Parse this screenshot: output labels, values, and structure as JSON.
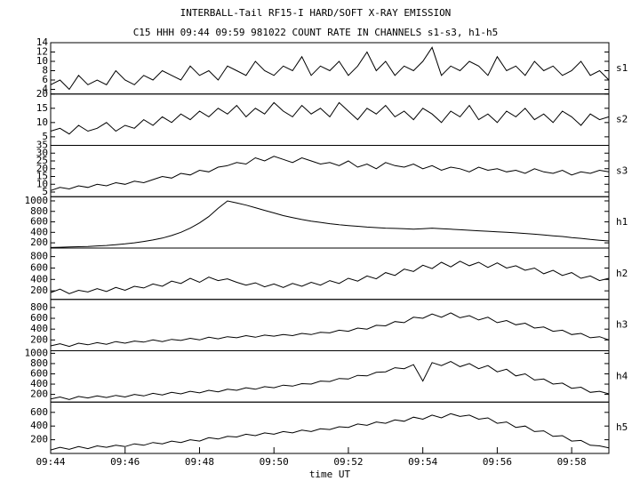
{
  "chart_data": {
    "type": "line",
    "title": "INTERBALL-Tail RF15-I HARD/SOFT X-RAY EMISSION",
    "subtitle": "C15 HHH 09:44 09:59 981022  COUNT RATE IN CHANNELS s1-s3, h1-h5",
    "xlabel": "time UT",
    "xlim": [
      584,
      599
    ],
    "xticks": [
      {
        "value": 584,
        "label": "09:44"
      },
      {
        "value": 586,
        "label": "09:46"
      },
      {
        "value": 588,
        "label": "09:48"
      },
      {
        "value": 590,
        "label": "09:50"
      },
      {
        "value": 592,
        "label": "09:52"
      },
      {
        "value": 594,
        "label": "09:54"
      },
      {
        "value": 596,
        "label": "09:56"
      },
      {
        "value": 598,
        "label": "09:58"
      }
    ],
    "x": [
      584,
      584.25,
      584.5,
      584.75,
      585,
      585.25,
      585.5,
      585.75,
      586,
      586.25,
      586.5,
      586.75,
      587,
      587.25,
      587.5,
      587.75,
      588,
      588.25,
      588.5,
      588.75,
      589,
      589.25,
      589.5,
      589.75,
      590,
      590.25,
      590.5,
      590.75,
      591,
      591.25,
      591.5,
      591.75,
      592,
      592.25,
      592.5,
      592.75,
      593,
      593.25,
      593.5,
      593.75,
      594,
      594.25,
      594.5,
      594.75,
      595,
      595.25,
      595.5,
      595.75,
      596,
      596.25,
      596.5,
      596.75,
      597,
      597.25,
      597.5,
      597.75,
      598,
      598.25,
      598.5,
      598.75,
      599
    ],
    "color": "#000000",
    "panels": [
      {
        "name": "s1",
        "ylim": [
          3,
          14
        ],
        "yticks": [
          4,
          6,
          8,
          10,
          12,
          14
        ],
        "values": [
          5,
          6,
          4,
          7,
          5,
          6,
          5,
          8,
          6,
          5,
          7,
          6,
          8,
          7,
          6,
          9,
          7,
          8,
          6,
          9,
          8,
          7,
          10,
          8,
          7,
          9,
          8,
          11,
          7,
          9,
          8,
          10,
          7,
          9,
          12,
          8,
          10,
          7,
          9,
          8,
          10,
          13,
          7,
          9,
          8,
          10,
          9,
          7,
          11,
          8,
          9,
          7,
          10,
          8,
          9,
          7,
          8,
          10,
          7,
          8,
          6
        ]
      },
      {
        "name": "s2",
        "ylim": [
          2,
          20
        ],
        "yticks": [
          5,
          10,
          15,
          20
        ],
        "values": [
          7,
          8,
          6,
          9,
          7,
          8,
          10,
          7,
          9,
          8,
          11,
          9,
          12,
          10,
          13,
          11,
          14,
          12,
          15,
          13,
          16,
          12,
          15,
          13,
          17,
          14,
          12,
          16,
          13,
          15,
          12,
          17,
          14,
          11,
          15,
          13,
          16,
          12,
          14,
          11,
          15,
          13,
          10,
          14,
          12,
          16,
          11,
          13,
          10,
          14,
          12,
          15,
          11,
          13,
          10,
          14,
          12,
          9,
          13,
          11,
          12
        ]
      },
      {
        "name": "s3",
        "ylim": [
          2,
          35
        ],
        "yticks": [
          5,
          10,
          15,
          20,
          25,
          30,
          35
        ],
        "values": [
          6,
          8,
          7,
          9,
          8,
          10,
          9,
          11,
          10,
          12,
          11,
          13,
          15,
          14,
          17,
          16,
          19,
          18,
          21,
          22,
          24,
          23,
          27,
          25,
          28,
          26,
          24,
          27,
          25,
          23,
          24,
          22,
          25,
          21,
          23,
          20,
          24,
          22,
          21,
          23,
          20,
          22,
          19,
          21,
          20,
          18,
          21,
          19,
          20,
          18,
          19,
          17,
          20,
          18,
          17,
          19,
          16,
          18,
          17,
          19,
          18
        ]
      },
      {
        "name": "h1",
        "ylim": [
          100,
          1080
        ],
        "yticks": [
          200,
          400,
          600,
          800,
          1000
        ],
        "values": [
          110,
          115,
          120,
          125,
          130,
          140,
          150,
          165,
          180,
          200,
          225,
          255,
          290,
          340,
          400,
          480,
          580,
          700,
          860,
          1000,
          960,
          920,
          870,
          820,
          770,
          720,
          680,
          645,
          615,
          590,
          565,
          545,
          530,
          515,
          500,
          490,
          480,
          475,
          468,
          460,
          470,
          480,
          470,
          460,
          450,
          440,
          430,
          420,
          410,
          400,
          390,
          378,
          365,
          350,
          335,
          320,
          300,
          285,
          265,
          250,
          235
        ]
      },
      {
        "name": "h2",
        "ylim": [
          50,
          950
        ],
        "yticks": [
          200,
          400,
          600,
          800
        ],
        "values": [
          170,
          230,
          150,
          210,
          180,
          240,
          190,
          260,
          210,
          280,
          250,
          320,
          280,
          370,
          330,
          420,
          350,
          440,
          380,
          410,
          350,
          300,
          340,
          270,
          320,
          260,
          330,
          280,
          350,
          300,
          380,
          330,
          420,
          370,
          460,
          410,
          520,
          470,
          580,
          540,
          650,
          590,
          700,
          620,
          720,
          640,
          700,
          610,
          690,
          600,
          640,
          560,
          600,
          500,
          560,
          470,
          520,
          420,
          460,
          380,
          420
        ]
      },
      {
        "name": "h3",
        "ylim": [
          0,
          950
        ],
        "yticks": [
          200,
          400,
          600,
          800
        ],
        "values": [
          90,
          130,
          80,
          140,
          110,
          150,
          120,
          170,
          140,
          180,
          160,
          200,
          170,
          210,
          190,
          230,
          200,
          250,
          220,
          260,
          240,
          280,
          250,
          290,
          270,
          300,
          280,
          320,
          300,
          340,
          330,
          380,
          360,
          420,
          400,
          470,
          460,
          540,
          520,
          620,
          600,
          680,
          620,
          700,
          610,
          650,
          570,
          620,
          520,
          560,
          480,
          510,
          420,
          440,
          360,
          380,
          300,
          320,
          240,
          260,
          200
        ]
      },
      {
        "name": "h4",
        "ylim": [
          50,
          1050
        ],
        "yticks": [
          200,
          400,
          600,
          800,
          1000
        ],
        "values": [
          110,
          150,
          100,
          160,
          130,
          170,
          140,
          180,
          150,
          200,
          170,
          220,
          190,
          240,
          210,
          260,
          230,
          280,
          250,
          300,
          280,
          330,
          300,
          350,
          330,
          380,
          360,
          410,
          400,
          460,
          450,
          510,
          500,
          570,
          560,
          630,
          640,
          720,
          700,
          780,
          460,
          820,
          760,
          840,
          740,
          800,
          700,
          760,
          640,
          690,
          560,
          600,
          480,
          500,
          400,
          420,
          320,
          340,
          240,
          260,
          210
        ]
      },
      {
        "name": "h5",
        "ylim": [
          0,
          750
        ],
        "yticks": [
          200,
          400,
          600
        ],
        "values": [
          50,
          90,
          60,
          100,
          70,
          110,
          90,
          120,
          100,
          140,
          120,
          160,
          140,
          180,
          160,
          200,
          180,
          230,
          210,
          250,
          240,
          280,
          260,
          300,
          280,
          320,
          300,
          340,
          320,
          360,
          350,
          390,
          380,
          430,
          410,
          460,
          440,
          490,
          470,
          530,
          500,
          560,
          520,
          580,
          540,
          560,
          500,
          520,
          440,
          460,
          380,
          400,
          320,
          330,
          250,
          260,
          180,
          190,
          120,
          110,
          80
        ]
      }
    ]
  }
}
